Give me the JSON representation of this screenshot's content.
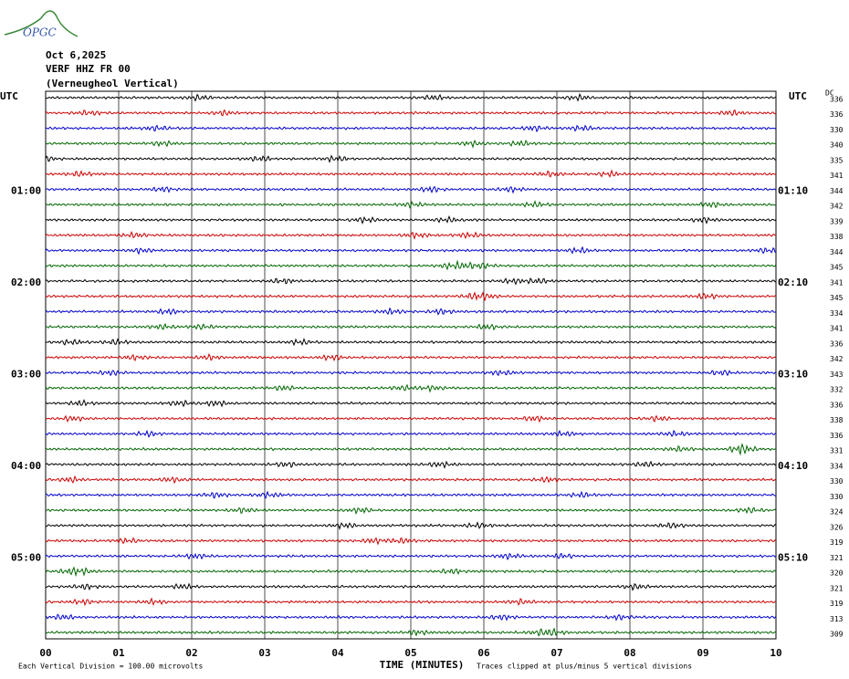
{
  "logo": "OPGC",
  "chart_data": {
    "type": "helicorder",
    "title": "Oct 6,2025",
    "subtitle": "VERF HHZ FR 00",
    "station": "(Verneugheol Vertical)",
    "left_header": "UTC",
    "right_header": "UTC",
    "dc_header": "DC",
    "x_label": "TIME (MINUTES)",
    "scale_note": "Each Vertical Division =  100.00 microvolts",
    "clip_note": "Traces clipped at plus/minus 5 vertical divisions",
    "categories": [
      null,
      null,
      null,
      null,
      null,
      null,
      "01:00",
      null,
      null,
      null,
      null,
      null,
      "02:00",
      null,
      null,
      null,
      null,
      null,
      "03:00",
      null,
      null,
      null,
      null,
      null,
      "04:00",
      null,
      null,
      null,
      null,
      null,
      "05:00",
      null,
      null,
      null,
      null,
      null
    ],
    "right_labels": [
      null,
      null,
      null,
      null,
      null,
      null,
      "01:10",
      null,
      null,
      null,
      null,
      null,
      "02:10",
      null,
      null,
      null,
      null,
      null,
      "03:10",
      null,
      null,
      null,
      null,
      null,
      "04:10",
      null,
      null,
      null,
      null,
      null,
      "05:10",
      null,
      null,
      null,
      null,
      null
    ],
    "dc_values": [
      336,
      336,
      330,
      340,
      335,
      341,
      344,
      342,
      339,
      338,
      344,
      345,
      341,
      345,
      334,
      341,
      336,
      342,
      343,
      332,
      336,
      338,
      336,
      331,
      334,
      330,
      330,
      324,
      326,
      319,
      321,
      320,
      321,
      319,
      313,
      309
    ],
    "trace_colors": [
      "#000000",
      "#cc0000",
      "#0000cc",
      "#006600"
    ],
    "xlim": [
      0,
      10
    ],
    "xticks": [
      {
        "value": 0,
        "label": "00"
      },
      {
        "value": 1,
        "label": "01"
      },
      {
        "value": 2,
        "label": "02"
      },
      {
        "value": 3,
        "label": "03"
      },
      {
        "value": 4,
        "label": "04"
      },
      {
        "value": 5,
        "label": "05"
      },
      {
        "value": 6,
        "label": "06"
      },
      {
        "value": 7,
        "label": "07"
      },
      {
        "value": 8,
        "label": "08"
      },
      {
        "value": 9,
        "label": "09"
      },
      {
        "value": 10,
        "label": "10"
      }
    ],
    "grid": true
  }
}
